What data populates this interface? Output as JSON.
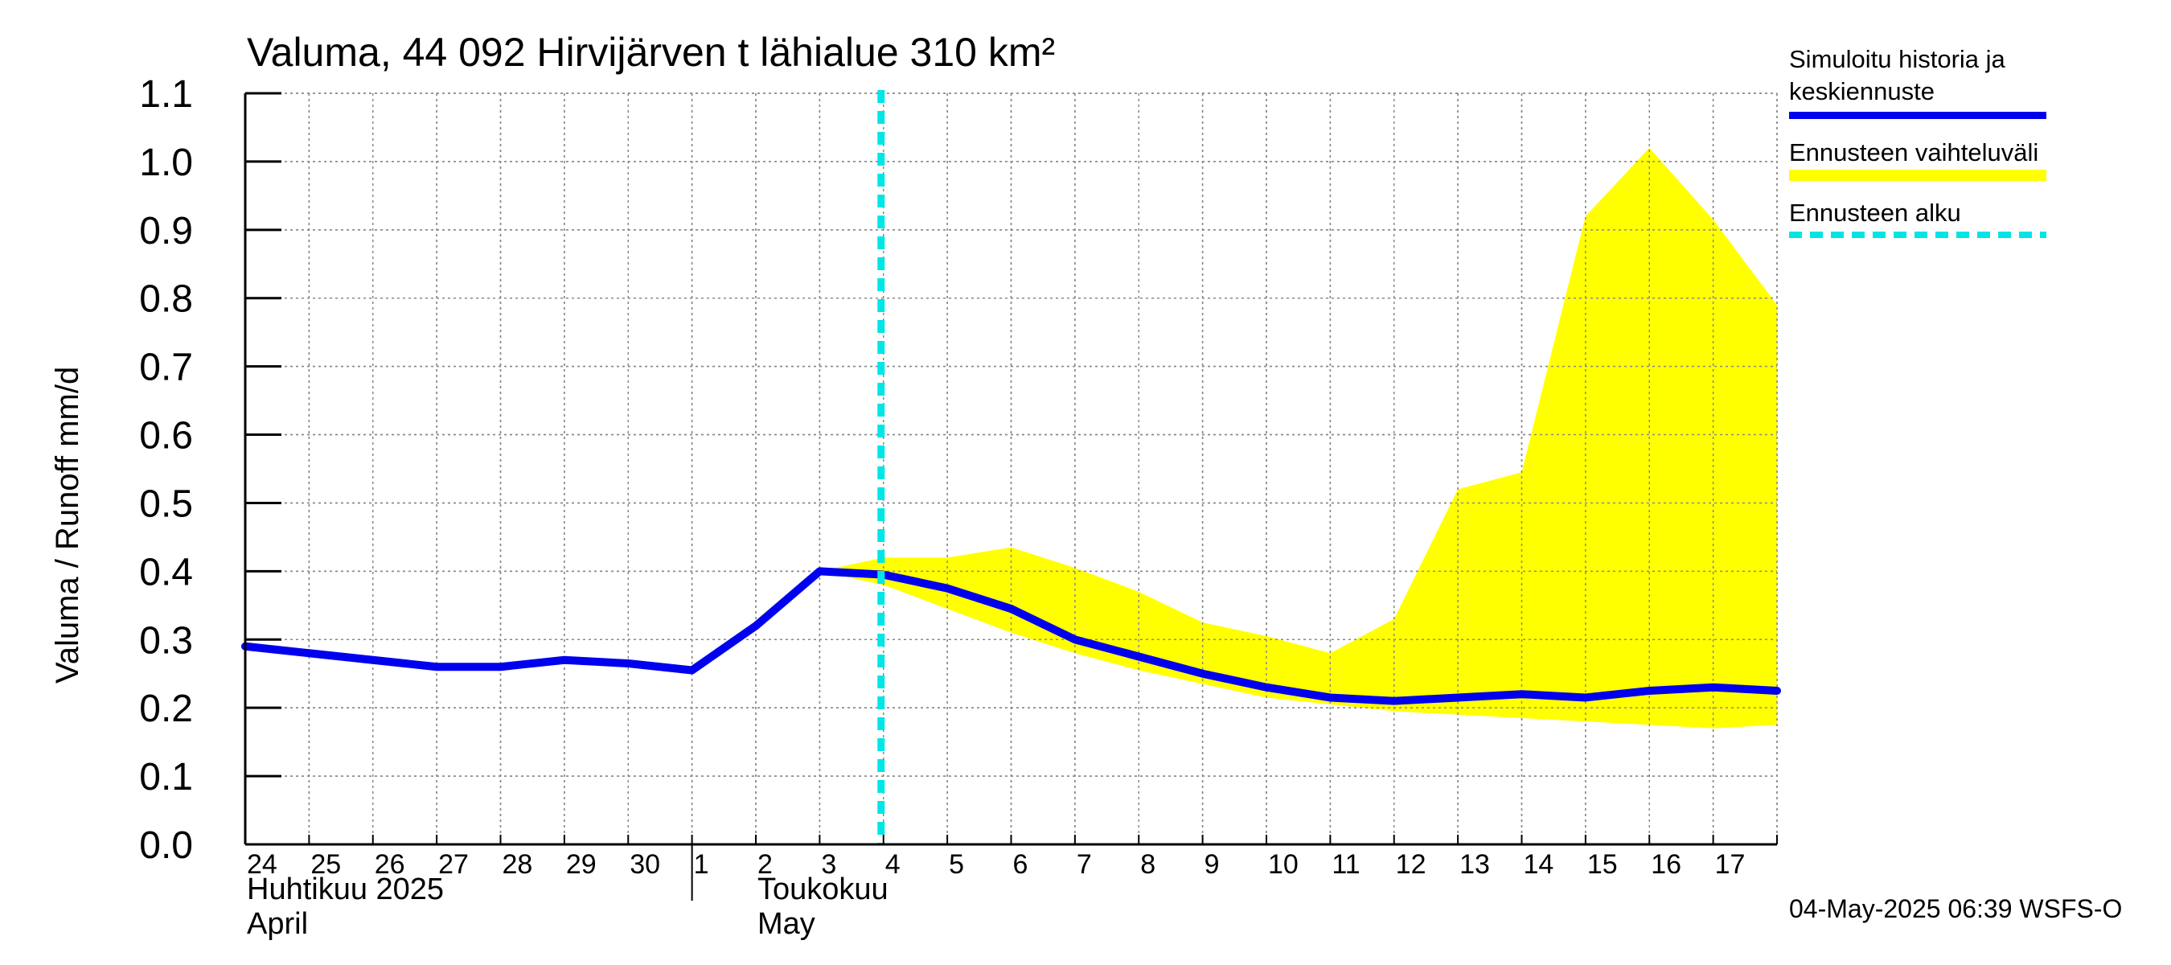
{
  "chart_data": {
    "type": "area",
    "title": "Valuma, 44 092 Hirvijärven t lähialue 310 km²",
    "ylabel": "Valuma / Runoff     mm/d",
    "ylim": [
      0.0,
      1.1
    ],
    "yticks": [
      "0.0",
      "0.1",
      "0.2",
      "0.3",
      "0.4",
      "0.5",
      "0.6",
      "0.7",
      "0.8",
      "0.9",
      "1.0",
      "1.1"
    ],
    "x_days": [
      "24",
      "25",
      "26",
      "27",
      "28",
      "29",
      "30",
      "1",
      "2",
      "3",
      "4",
      "5",
      "6",
      "7",
      "8",
      "9",
      "10",
      "11",
      "12",
      "13",
      "14",
      "15",
      "16",
      "17"
    ],
    "month_labels": [
      {
        "line1": "Huhtikuu  2025",
        "line2": "April"
      },
      {
        "line1": "Toukokuu",
        "line2": "May"
      }
    ],
    "forecast_start_day_index": 10,
    "series": [
      {
        "name": "Simuloitu historia ja keskiennuste",
        "color": "#0000ee",
        "x": [
          0,
          1,
          2,
          3,
          4,
          5,
          6,
          7,
          8,
          9,
          10,
          11,
          12,
          13,
          14,
          15,
          16,
          17,
          18,
          19,
          20,
          21,
          22,
          23,
          24
        ],
        "values": [
          0.29,
          0.28,
          0.27,
          0.26,
          0.26,
          0.27,
          0.265,
          0.255,
          0.32,
          0.4,
          0.395,
          0.375,
          0.345,
          0.3,
          0.275,
          0.25,
          0.23,
          0.215,
          0.21,
          0.215,
          0.22,
          0.215,
          0.225,
          0.23,
          0.225
        ]
      },
      {
        "name": "Ennusteen vaihteluväli",
        "color": "#ffff00",
        "x": [
          9,
          10,
          11,
          12,
          13,
          14,
          15,
          16,
          17,
          18,
          19,
          20,
          21,
          22,
          23,
          24
        ],
        "upper": [
          0.4,
          0.42,
          0.42,
          0.435,
          0.405,
          0.37,
          0.325,
          0.305,
          0.28,
          0.33,
          0.52,
          0.545,
          0.92,
          1.02,
          0.915,
          0.79
        ],
        "lower": [
          0.4,
          0.38,
          0.345,
          0.31,
          0.28,
          0.255,
          0.235,
          0.215,
          0.205,
          0.195,
          0.19,
          0.185,
          0.18,
          0.175,
          0.17,
          0.175
        ]
      }
    ],
    "legend": [
      {
        "label_lines": [
          "Simuloitu historia ja",
          "keskiennuste"
        ],
        "color": "#0000ee",
        "style": "solid"
      },
      {
        "label_lines": [
          "Ennusteen vaihteluväli"
        ],
        "color": "#ffff00",
        "style": "solid"
      },
      {
        "label_lines": [
          "Ennusteen alku"
        ],
        "color": "#00e5e5",
        "style": "dashed"
      }
    ],
    "legend_position": "right",
    "grid": true
  },
  "footer": "04-May-2025 06:39 WSFS-O"
}
